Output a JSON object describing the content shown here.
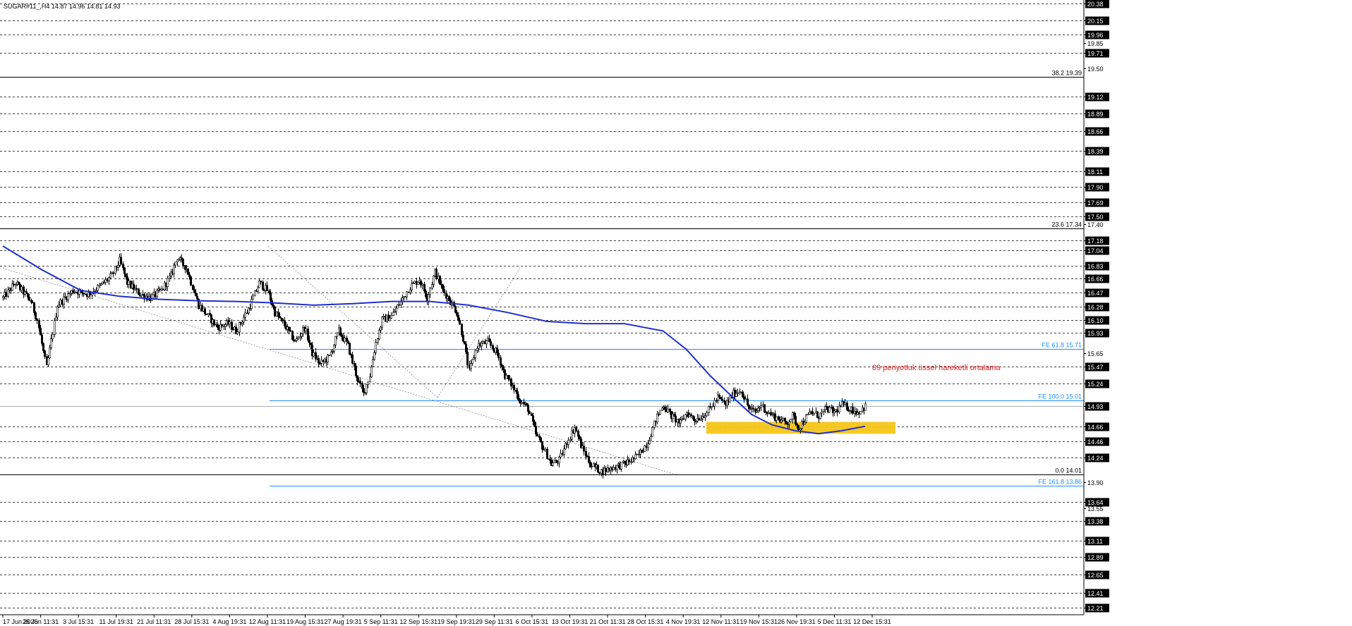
{
  "chart_data": {
    "type": "candlestick",
    "title": "SUGAR#11_,H4  14.87 14.96 14.81 14.93",
    "symbol": "SUGAR#11_,H4",
    "ohlc": {
      "open": 14.87,
      "high": 14.96,
      "low": 14.81,
      "close": 14.93
    },
    "ylim": [
      12.11,
      20.43
    ],
    "grid": true,
    "colors": {
      "candle": "#000000",
      "ema": "#1f2fd0",
      "fe": "#1e90ff",
      "fib": "#000000",
      "zone": "#f5c518",
      "annotation": "#e51c1c",
      "trend": "#8a8a8a"
    },
    "price_levels": [
      "20.38",
      "20.15",
      "19.96",
      "19.71",
      "19.12",
      "18.89",
      "18.66",
      "18.39",
      "18.11",
      "17.90",
      "17.69",
      "17.50",
      "17.18",
      "17.04",
      "16.83",
      "16.66",
      "16.47",
      "16.28",
      "16.10",
      "15.93",
      "15.47",
      "15.24",
      "14.93",
      "14.66",
      "14.46",
      "14.24",
      "13.64",
      "13.38",
      "13.11",
      "12.89",
      "12.65",
      "12.41",
      "12.21"
    ],
    "minor_ticks": [
      "19.85",
      "19.50",
      "17.40",
      "15.65",
      "13.90",
      "13.55"
    ],
    "x_labels": [
      "17 Jun 2025",
      "26 Jun 11:31",
      "3 Jul 15:31",
      "11 Jul 19:31",
      "21 Jul 11:31",
      "28 Jul 15:31",
      "4 Aug 19:31",
      "12 Aug 11:31",
      "19 Aug 15:31",
      "27 Aug 19:31",
      "5 Sep 11:31",
      "12 Sep 15:31",
      "19 Sep 19:31",
      "29 Sep 11:31",
      "6 Oct 15:31",
      "13 Oct 19:31",
      "21 Oct 11:31",
      "28 Oct 15:31",
      "4 Nov 19:31",
      "12 Nov 11:31",
      "19 Nov 15:31",
      "26 Nov 19:31",
      "5 Dec 11:31",
      "12 Dec 15:31"
    ],
    "fib_levels": [
      {
        "label": "38.2 19.39",
        "value": 19.39
      },
      {
        "label": "23.6 17.34",
        "value": 17.34
      },
      {
        "label": "0.0 14.01",
        "value": 14.01
      }
    ],
    "fe_levels": [
      {
        "label": "FE 61.8 15.71",
        "value": 15.71
      },
      {
        "label": "FE 100.0 15.01",
        "value": 15.01
      },
      {
        "label": "FE 161.8 13.86",
        "value": 13.86
      }
    ],
    "current_price": "14.93",
    "annotation": "89 periyotluk üssel hareketli ortalama",
    "support_zone": [
      14.56,
      14.72
    ],
    "trend_line": {
      "from": 16.8,
      "to": 14.0
    },
    "ema_series": {
      "name": "",
      "x": [
        0,
        25,
        50,
        75,
        100,
        125,
        150,
        175,
        200,
        225,
        250,
        275,
        300,
        325,
        350,
        375,
        400,
        425,
        440,
        455,
        470,
        482,
        495,
        510,
        525,
        540,
        545,
        555
      ],
      "values": [
        17.1,
        16.78,
        16.5,
        16.42,
        16.38,
        16.36,
        16.35,
        16.33,
        16.3,
        16.32,
        16.35,
        16.35,
        16.3,
        16.2,
        16.08,
        16.05,
        16.05,
        15.95,
        15.7,
        15.35,
        15.05,
        14.82,
        14.68,
        14.6,
        14.56,
        14.6,
        14.62,
        14.66
      ]
    },
    "candle_anchors": {
      "x": [
        0,
        8,
        12,
        18,
        22,
        28,
        35,
        45,
        55,
        62,
        70,
        75,
        80,
        88,
        95,
        102,
        108,
        112,
        118,
        122,
        126,
        132,
        138,
        145,
        150,
        158,
        165,
        170,
        175,
        182,
        188,
        194,
        199,
        204,
        210,
        216,
        222,
        228,
        232,
        236,
        240,
        244,
        250,
        256,
        262,
        268,
        273,
        278,
        283,
        288,
        292,
        296,
        300,
        305,
        312,
        318,
        323,
        328,
        333,
        338,
        343,
        348,
        353,
        358,
        363,
        368,
        372,
        378,
        385,
        392,
        400,
        408,
        415,
        420,
        425,
        430,
        436,
        440,
        445,
        450,
        455,
        460,
        465,
        470,
        475,
        480,
        484,
        488,
        492,
        496,
        500,
        504,
        508,
        512,
        516,
        520,
        525,
        530,
        535,
        540,
        545,
        550,
        555
      ],
      "values": [
        16.4,
        16.6,
        16.5,
        16.35,
        16.1,
        15.45,
        16.3,
        16.5,
        16.45,
        16.55,
        16.7,
        16.9,
        16.6,
        16.45,
        16.4,
        16.5,
        16.7,
        16.95,
        16.8,
        16.55,
        16.3,
        16.15,
        16.0,
        16.05,
        15.95,
        16.25,
        16.6,
        16.5,
        16.2,
        16.0,
        15.8,
        16.0,
        15.65,
        15.5,
        15.6,
        15.95,
        15.75,
        15.3,
        15.1,
        15.35,
        15.8,
        16.1,
        16.15,
        16.35,
        16.55,
        16.65,
        16.4,
        16.75,
        16.5,
        16.35,
        16.2,
        15.85,
        15.4,
        15.75,
        15.8,
        15.65,
        15.35,
        15.2,
        15.0,
        14.9,
        14.55,
        14.35,
        14.15,
        14.2,
        14.45,
        14.65,
        14.4,
        14.15,
        14.05,
        14.1,
        14.15,
        14.25,
        14.45,
        14.75,
        14.95,
        14.8,
        14.7,
        14.85,
        14.75,
        14.8,
        14.9,
        15.05,
        14.95,
        15.1,
        15.15,
        14.9,
        14.85,
        14.95,
        14.85,
        14.8,
        14.75,
        14.7,
        14.8,
        14.65,
        14.75,
        14.85,
        14.8,
        14.9,
        14.85,
        14.95,
        14.9,
        14.85,
        14.93
      ]
    }
  }
}
